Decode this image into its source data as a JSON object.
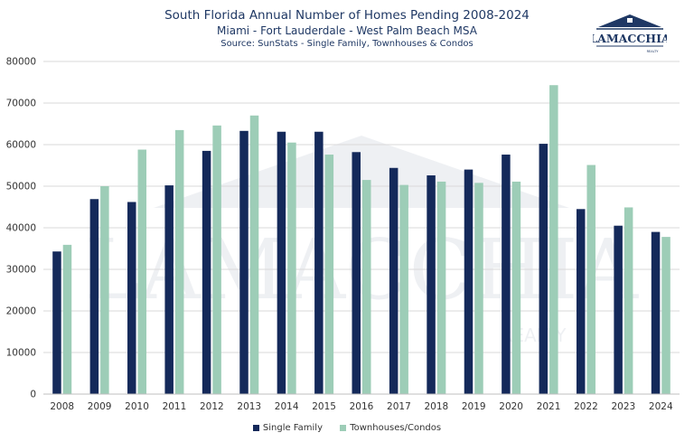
{
  "title": "South Florida Annual Number of Homes Pending 2008-2024",
  "subtitle": "Miami - Fort Lauderdale - West Palm Beach MSA",
  "source": "Source: SunStats - Single Family, Townhouses & Condos",
  "logo": {
    "text": "LAMACCHIA",
    "subtext": "REALTY"
  },
  "watermark": {
    "text": "LAMACCHIA",
    "subtext": "REALTY"
  },
  "colors": {
    "single_family": "#14295a",
    "townhouses": "#9dcdb7",
    "grid": "#d9d9d9",
    "logo": "#1f3864"
  },
  "chart_data": {
    "type": "bar",
    "categories": [
      "2008",
      "2009",
      "2010",
      "2011",
      "2012",
      "2013",
      "2014",
      "2015",
      "2016",
      "2017",
      "2018",
      "2019",
      "2020",
      "2021",
      "2022",
      "2023",
      "2024"
    ],
    "series": [
      {
        "name": "Single Family",
        "values": [
          34300,
          46900,
          46200,
          50200,
          58500,
          63300,
          63100,
          63100,
          58200,
          54400,
          52600,
          54000,
          57600,
          60200,
          44500,
          40500,
          39000
        ]
      },
      {
        "name": "Townhouses/Condos",
        "values": [
          35900,
          50000,
          58800,
          63500,
          64600,
          67000,
          60500,
          57600,
          51500,
          50300,
          51100,
          50800,
          51100,
          74300,
          55100,
          44900,
          37800
        ]
      }
    ],
    "yticks": [
      "0",
      "10000",
      "20000",
      "30000",
      "40000",
      "50000",
      "60000",
      "70000",
      "80000"
    ],
    "ylim": [
      0,
      80000
    ],
    "grid": true,
    "legend": "bottom-center"
  }
}
